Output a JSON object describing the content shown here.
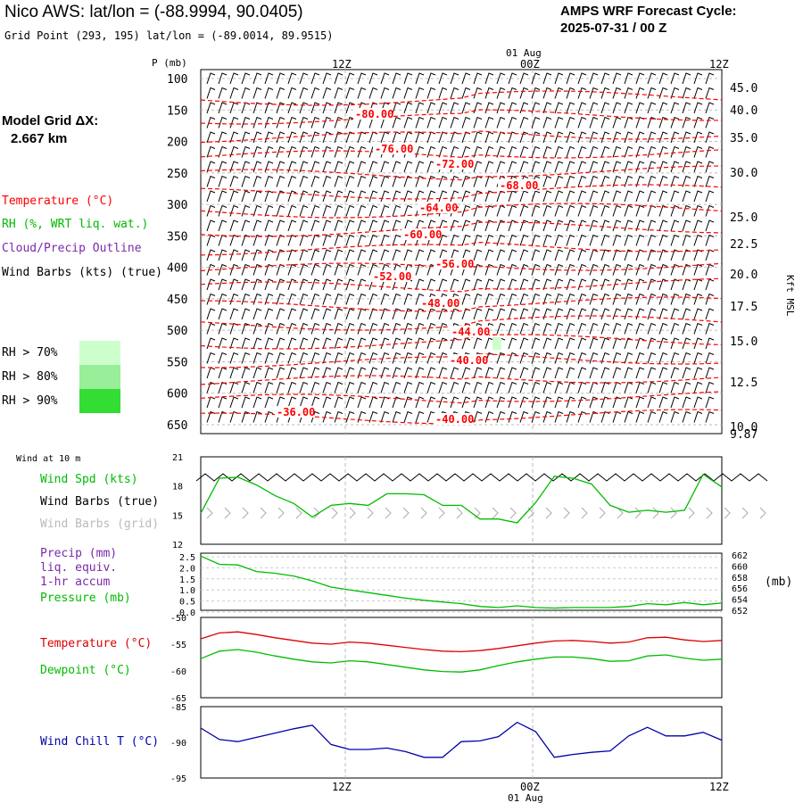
{
  "header": {
    "title": "Nico AWS:  lat/lon = (-88.9994, 90.0405)",
    "subtitle": "Grid Point (293, 195) lat/lon = (-89.0014, 89.9515)",
    "cycle_line1": "AMPS WRF Forecast Cycle:",
    "cycle_line2": "2025-07-31 / 00  Z"
  },
  "left_panel": {
    "grid_label": "Model Grid ΔX:",
    "grid_value": "2.667 km",
    "legend": {
      "temperature": "Temperature (°C)",
      "rh": "RH (%, WRT liq. wat.)",
      "cloud": "Cloud/Precip Outline",
      "wind": "Wind Barbs (kts) (true)"
    },
    "rh_bins": [
      {
        "label": "RH > 70%",
        "color": "#ccffcc"
      },
      {
        "label": "RH > 80%",
        "color": "#99ee99"
      },
      {
        "label": "RH > 90%",
        "color": "#33dd33"
      }
    ]
  },
  "time_axis": {
    "top_ticks": [
      "12Z",
      "00Z",
      "12Z"
    ],
    "date_label": "01 Aug",
    "bottom_ticks": [
      "12Z",
      "00Z",
      "12Z"
    ],
    "bottom_date": "01 Aug"
  },
  "colors": {
    "temperature": "#ff0000",
    "green": "#00cc00",
    "purple": "#7a2aa8",
    "blue": "#0000aa",
    "gray": "#aaaaaa"
  },
  "chart_data": [
    {
      "type": "line",
      "name": "upper-air cross section",
      "y_axis_label": "P (mb)",
      "y_ticks": [
        100,
        150,
        200,
        250,
        300,
        350,
        400,
        450,
        500,
        550,
        600,
        650
      ],
      "right_axis_label": "Kft MSL",
      "right_ticks": [
        "45.0",
        "40.0",
        "35.0",
        "30.0",
        "25.0",
        "22.5",
        "20.0",
        "17.5",
        "15.0",
        "12.5",
        "10.0",
        "9.87"
      ],
      "isotherm_labels": [
        "-80.00",
        "-76.00",
        "-72.00",
        "-68.00",
        "-64.00",
        "-60.00",
        "-56.00",
        "-52.00",
        "-48.00",
        "-44.00",
        "-40.00",
        "-36.00",
        "-40.00"
      ]
    },
    {
      "type": "line",
      "header": "Wind at 10 m",
      "legend": {
        "spd": "Wind Spd (kts)",
        "barbs_true": "Wind Barbs (true)",
        "barbs_grid": "Wind Barbs (grid)"
      },
      "y_ticks": [
        "21",
        "18",
        "15",
        "12"
      ],
      "ylim": [
        12,
        21
      ],
      "x": [
        0,
        1,
        2,
        3,
        4,
        5,
        6,
        7,
        8,
        9,
        10,
        11,
        12,
        13,
        14,
        15,
        16,
        17,
        18,
        19,
        20,
        21,
        22,
        23,
        24,
        25,
        26,
        27,
        28
      ],
      "values": [
        15.2,
        18.8,
        18.9,
        18.1,
        17.0,
        16.2,
        14.8,
        16.0,
        16.2,
        16.0,
        17.2,
        17.2,
        17.1,
        16.0,
        16.0,
        14.6,
        14.6,
        14.2,
        16.3,
        19.0,
        18.8,
        18.2,
        16.0,
        15.3,
        15.5,
        15.3,
        15.5,
        19.2,
        17.9
      ]
    },
    {
      "type": "line",
      "legend": {
        "precip": "Precip (mm)",
        "liq": "liq. equiv.",
        "accum": "1-hr accum",
        "pressure": "Pressure (mb)"
      },
      "left_ticks": [
        "2.5",
        "2.0",
        "1.5",
        "1.0",
        "0.5",
        "0.0"
      ],
      "right_ticks": [
        "662",
        "660",
        "658",
        "656",
        "654",
        "652"
      ],
      "right_unit": "(mb)",
      "ylim": [
        652,
        662
      ],
      "x": [
        0,
        1,
        2,
        3,
        4,
        5,
        6,
        7,
        8,
        9,
        10,
        11,
        12,
        13,
        14,
        15,
        16,
        17,
        18,
        19,
        20,
        21,
        22,
        23,
        24,
        25,
        26,
        27,
        28
      ],
      "values": [
        661.8,
        660.3,
        660.2,
        659.0,
        658.7,
        658.2,
        657.3,
        656.2,
        655.7,
        655.2,
        654.7,
        654.2,
        653.8,
        653.5,
        653.2,
        652.7,
        652.5,
        652.8,
        652.5,
        652.4,
        652.5,
        652.5,
        652.5,
        652.7,
        653.2,
        653.0,
        653.4,
        653.0,
        653.3
      ]
    },
    {
      "type": "line",
      "legend": {
        "temp": "Temperature (°C)",
        "dew": "Dewpoint (°C)"
      },
      "y_ticks": [
        "-50",
        "-55",
        "-60",
        "-65"
      ],
      "ylim": [
        -65,
        -50
      ],
      "x": [
        0,
        1,
        2,
        3,
        4,
        5,
        6,
        7,
        8,
        9,
        10,
        11,
        12,
        13,
        14,
        15,
        16,
        17,
        18,
        19,
        20,
        21,
        22,
        23,
        24,
        25,
        26,
        27,
        28
      ],
      "series": [
        {
          "name": "Temperature (°C)",
          "values": [
            -54.0,
            -52.9,
            -52.7,
            -53.2,
            -53.8,
            -54.3,
            -54.8,
            -55.0,
            -54.6,
            -54.8,
            -55.2,
            -55.6,
            -56.0,
            -56.3,
            -56.4,
            -56.2,
            -55.8,
            -55.3,
            -54.8,
            -54.4,
            -54.3,
            -54.5,
            -54.8,
            -54.6,
            -53.8,
            -53.7,
            -54.2,
            -54.5,
            -54.3
          ]
        },
        {
          "name": "Dewpoint (°C)",
          "values": [
            -57.7,
            -56.3,
            -56.0,
            -56.5,
            -57.2,
            -57.8,
            -58.3,
            -58.5,
            -58.1,
            -58.3,
            -58.8,
            -59.3,
            -59.8,
            -60.1,
            -60.2,
            -59.8,
            -59.0,
            -58.3,
            -57.8,
            -57.4,
            -57.4,
            -57.7,
            -58.2,
            -58.1,
            -57.2,
            -57.0,
            -57.6,
            -58.0,
            -57.8
          ]
        }
      ]
    },
    {
      "type": "line",
      "legend": {
        "wc": "Wind Chill T (°C)"
      },
      "y_ticks": [
        "-85",
        "-90",
        "-95"
      ],
      "ylim": [
        -95,
        -85
      ],
      "x": [
        0,
        1,
        2,
        3,
        4,
        5,
        6,
        7,
        8,
        9,
        10,
        11,
        12,
        13,
        14,
        15,
        16,
        17,
        18,
        19,
        20,
        21,
        22,
        23,
        24,
        25,
        26,
        27,
        28
      ],
      "values": [
        -88.0,
        -89.6,
        -89.9,
        -89.3,
        -88.7,
        -88.1,
        -87.6,
        -90.3,
        -91.0,
        -91.0,
        -90.8,
        -91.3,
        -92.1,
        -92.1,
        -89.9,
        -89.8,
        -89.2,
        -87.2,
        -88.5,
        -92.1,
        -91.7,
        -91.4,
        -91.2,
        -89.1,
        -87.9,
        -89.1,
        -89.1,
        -88.6,
        -89.7
      ]
    }
  ]
}
